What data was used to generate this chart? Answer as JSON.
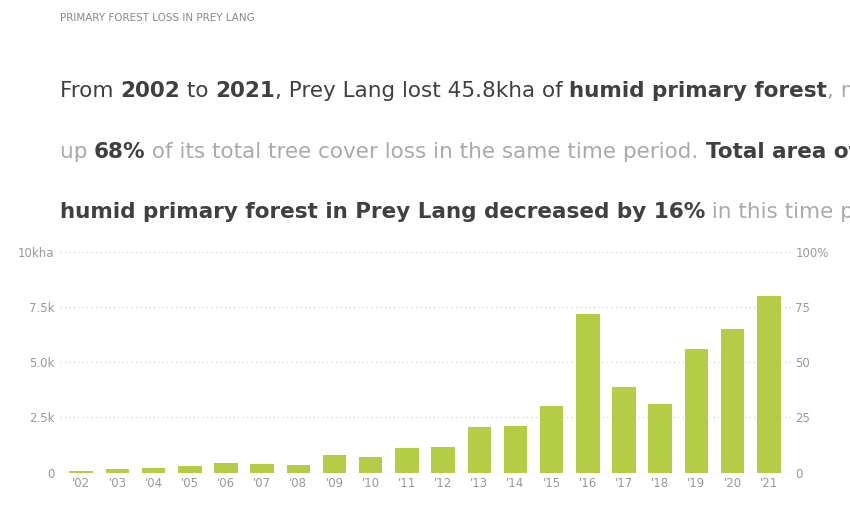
{
  "title": "PRIMARY FOREST LOSS IN PREY LANG",
  "years": [
    "'02",
    "'03",
    "'04",
    "'05",
    "'06",
    "'07",
    "'08",
    "'09",
    "'10",
    "'11",
    "'12",
    "'13",
    "'14",
    "'15",
    "'16",
    "'17",
    "'18",
    "'19",
    "'20",
    "'21"
  ],
  "values": [
    50,
    150,
    200,
    300,
    420,
    380,
    350,
    800,
    700,
    1100,
    1150,
    2050,
    2100,
    3000,
    7200,
    3900,
    3100,
    5600,
    6500,
    8000
  ],
  "bar_color": "#b5cc47",
  "ylim_left": [
    0,
    10000
  ],
  "ylim_right": [
    0,
    100
  ],
  "yticks_left": [
    0,
    2500,
    5000,
    7500,
    10000
  ],
  "ytick_labels_left": [
    "0",
    "2.5k",
    "5.0k",
    "7.5k",
    "10kha"
  ],
  "yticks_right": [
    0,
    25,
    50,
    75,
    100
  ],
  "ytick_labels_right": [
    "0",
    "25",
    "50",
    "75",
    "100%"
  ],
  "background_color": "#ffffff",
  "title_color": "#888888",
  "text_color": "#404040",
  "light_text_color": "#aaaaaa",
  "grid_color": "#cccccc",
  "subtitle_fontsize": 15.5,
  "title_fontsize": 7.5
}
